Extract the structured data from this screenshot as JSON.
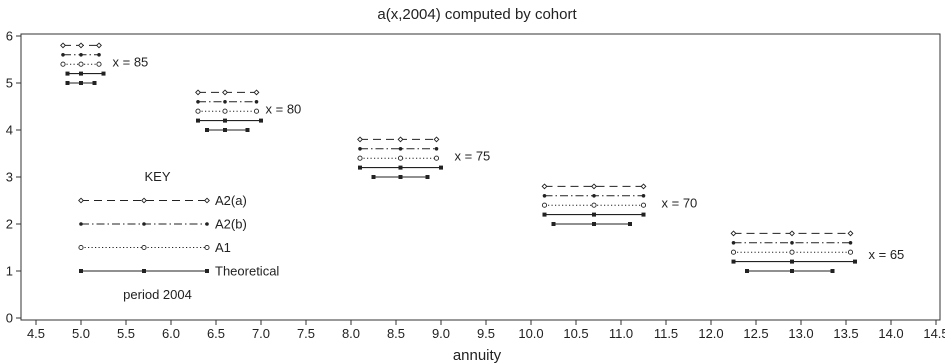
{
  "chart_data": {
    "type": "interval",
    "title": "a(x,2004) computed by cohort",
    "xlabel": "annuity",
    "ylabel": "",
    "xlim": [
      4.5,
      14.5
    ],
    "ylim": [
      0,
      6
    ],
    "xticks": [
      4.5,
      5.0,
      5.5,
      6.0,
      6.5,
      7.0,
      7.5,
      8.0,
      8.5,
      9.0,
      9.5,
      10.0,
      10.5,
      11.0,
      11.5,
      12.0,
      12.5,
      13.0,
      13.5,
      14.0,
      14.5
    ],
    "xtick_labels": [
      "4.5",
      "5.0",
      "5.5",
      "6.0",
      "6.5",
      "7.0",
      "7.5",
      "8.0",
      "8.5",
      "9.0",
      "9.5",
      "10.0",
      "10.5",
      "11.0",
      "11.5",
      "12.0",
      "12.5",
      "13.0",
      "13.5",
      "14.0",
      "14.5"
    ],
    "yticks": [
      0,
      1,
      2,
      3,
      4,
      5,
      6
    ],
    "ytick_labels": [
      "0",
      "1",
      "2",
      "3",
      "4",
      "5",
      "6"
    ],
    "grid": false,
    "legend": {
      "title": "KEY",
      "position": "left",
      "note": "period 2004",
      "entries": [
        {
          "label": "A2(a)",
          "style": "dash",
          "marker": "diamond",
          "y": 2.5
        },
        {
          "label": "A2(b)",
          "style": "dashdot",
          "marker": "dot",
          "y": 2.0
        },
        {
          "label": "A1",
          "style": "dotted",
          "marker": "circle",
          "y": 1.5
        },
        {
          "label": "Theoretical",
          "style": "solid",
          "marker": "square",
          "y": 1.0
        }
      ],
      "x_start": 5.0,
      "x_mid": 5.7,
      "x_end": 6.4
    },
    "groups": [
      {
        "label": "x = 85",
        "label_x": 5.35,
        "label_y": 5.45,
        "series": [
          {
            "y": 5.8,
            "style": "dash",
            "marker": "diamond",
            "low": 4.8,
            "mid": 5.0,
            "high": 5.2
          },
          {
            "y": 5.6,
            "style": "dashdot",
            "marker": "dot",
            "low": 4.8,
            "mid": 5.0,
            "high": 5.2
          },
          {
            "y": 5.4,
            "style": "dotted",
            "marker": "circle",
            "low": 4.8,
            "mid": 5.0,
            "high": 5.2
          },
          {
            "y": 5.2,
            "style": "solid",
            "marker": "square",
            "low": 4.85,
            "mid": 5.0,
            "high": 5.25
          },
          {
            "y": 5.0,
            "style": "solid",
            "marker": "square",
            "low": 4.85,
            "mid": 5.0,
            "high": 5.15
          }
        ]
      },
      {
        "label": "x = 80",
        "label_x": 7.05,
        "label_y": 4.45,
        "series": [
          {
            "y": 4.8,
            "style": "dash",
            "marker": "diamond",
            "low": 6.3,
            "mid": 6.6,
            "high": 6.95
          },
          {
            "y": 4.6,
            "style": "dashdot",
            "marker": "dot",
            "low": 6.3,
            "mid": 6.6,
            "high": 6.95
          },
          {
            "y": 4.4,
            "style": "dotted",
            "marker": "circle",
            "low": 6.3,
            "mid": 6.6,
            "high": 6.95
          },
          {
            "y": 4.2,
            "style": "solid",
            "marker": "square",
            "low": 6.3,
            "mid": 6.6,
            "high": 7.0
          },
          {
            "y": 4.0,
            "style": "solid",
            "marker": "square",
            "low": 6.4,
            "mid": 6.6,
            "high": 6.85
          }
        ]
      },
      {
        "label": "x = 75",
        "label_x": 9.15,
        "label_y": 3.45,
        "series": [
          {
            "y": 3.8,
            "style": "dash",
            "marker": "diamond",
            "low": 8.1,
            "mid": 8.55,
            "high": 8.95
          },
          {
            "y": 3.6,
            "style": "dashdot",
            "marker": "dot",
            "low": 8.1,
            "mid": 8.55,
            "high": 8.95
          },
          {
            "y": 3.4,
            "style": "dotted",
            "marker": "circle",
            "low": 8.1,
            "mid": 8.55,
            "high": 8.95
          },
          {
            "y": 3.2,
            "style": "solid",
            "marker": "square",
            "low": 8.1,
            "mid": 8.55,
            "high": 9.0
          },
          {
            "y": 3.0,
            "style": "solid",
            "marker": "square",
            "low": 8.25,
            "mid": 8.55,
            "high": 8.85
          }
        ]
      },
      {
        "label": "x = 70",
        "label_x": 11.45,
        "label_y": 2.45,
        "series": [
          {
            "y": 2.8,
            "style": "dash",
            "marker": "diamond",
            "low": 10.15,
            "mid": 10.7,
            "high": 11.25
          },
          {
            "y": 2.6,
            "style": "dashdot",
            "marker": "dot",
            "low": 10.15,
            "mid": 10.7,
            "high": 11.25
          },
          {
            "y": 2.4,
            "style": "dotted",
            "marker": "circle",
            "low": 10.15,
            "mid": 10.7,
            "high": 11.25
          },
          {
            "y": 2.2,
            "style": "solid",
            "marker": "square",
            "low": 10.15,
            "mid": 10.7,
            "high": 11.25
          },
          {
            "y": 2.0,
            "style": "solid",
            "marker": "square",
            "low": 10.25,
            "mid": 10.7,
            "high": 11.1
          }
        ]
      },
      {
        "label": "x = 65",
        "label_x": 13.75,
        "label_y": 1.35,
        "series": [
          {
            "y": 1.8,
            "style": "dash",
            "marker": "diamond",
            "low": 12.25,
            "mid": 12.9,
            "high": 13.55
          },
          {
            "y": 1.6,
            "style": "dashdot",
            "marker": "dot",
            "low": 12.25,
            "mid": 12.9,
            "high": 13.55
          },
          {
            "y": 1.4,
            "style": "dotted",
            "marker": "circle",
            "low": 12.25,
            "mid": 12.9,
            "high": 13.55
          },
          {
            "y": 1.2,
            "style": "solid",
            "marker": "square",
            "low": 12.25,
            "mid": 12.9,
            "high": 13.6
          },
          {
            "y": 1.0,
            "style": "solid",
            "marker": "square",
            "low": 12.4,
            "mid": 12.9,
            "high": 13.35
          }
        ]
      }
    ]
  }
}
